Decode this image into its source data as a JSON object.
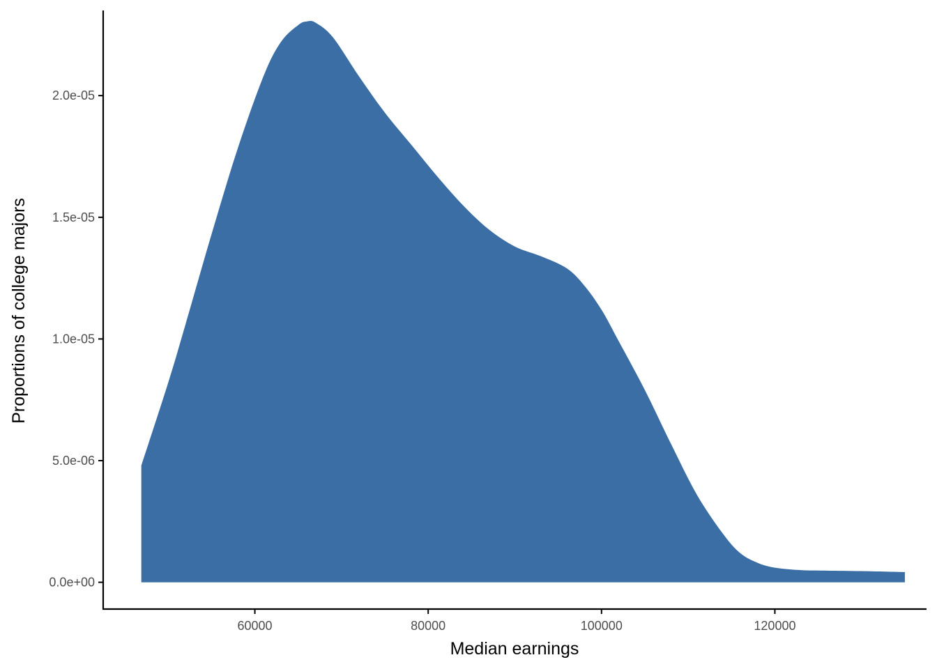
{
  "chart_data": {
    "type": "area",
    "title": "",
    "xlabel": "Median earnings",
    "ylabel": "Proportions of college majors",
    "xlim": [
      42500,
      137500
    ],
    "ylim": [
      -1.1e-06,
      2.35e-05
    ],
    "x_ticks": [
      60000,
      80000,
      100000,
      120000
    ],
    "x_tick_labels": [
      "60000",
      "80000",
      "100000",
      "120000"
    ],
    "y_ticks": [
      0,
      5e-06,
      1e-05,
      1.5e-05,
      2e-05
    ],
    "y_tick_labels": [
      "0.0e+00",
      "5.0e-06",
      "1.0e-05",
      "1.5e-05",
      "2.0e-05"
    ],
    "grid": false,
    "legend": "none",
    "fill_color": "#3A6EA5",
    "axis_color": "#000000",
    "series": [
      {
        "x": [
          46900,
          50000,
          52000,
          55000,
          58000,
          61000,
          63000,
          65000,
          66000,
          67000,
          69000,
          72000,
          75000,
          78000,
          81000,
          84000,
          87000,
          90000,
          93000,
          96000,
          98000,
          100000,
          102000,
          105000,
          108000,
          111000,
          114000,
          116000,
          118000,
          120000,
          123000,
          126000,
          130000,
          135000
        ],
        "y": [
          4.8e-06,
          8.2e-06,
          1.06e-05,
          1.43e-05,
          1.78e-05,
          2.08e-05,
          2.22e-05,
          2.29e-05,
          2.305e-05,
          2.3e-05,
          2.24e-05,
          2.08e-05,
          1.93e-05,
          1.8e-05,
          1.67e-05,
          1.55e-05,
          1.45e-05,
          1.38e-05,
          1.34e-05,
          1.29e-05,
          1.22e-05,
          1.12e-05,
          9.9e-06,
          7.9e-06,
          5.7e-06,
          3.6e-06,
          2e-06,
          1.2e-06,
          8e-07,
          6e-07,
          5e-07,
          4.8e-07,
          4.6e-07,
          4.2e-07
        ]
      }
    ]
  }
}
